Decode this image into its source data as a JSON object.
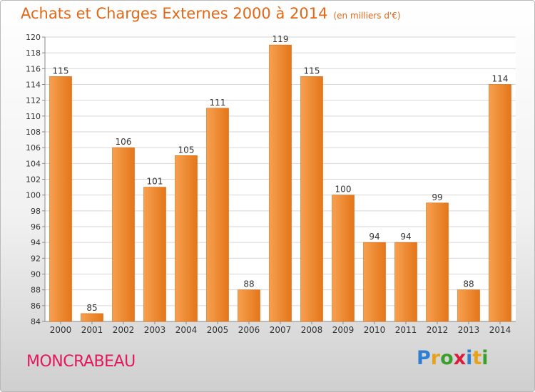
{
  "title": "Achats et Charges Externes 2000 à 2014",
  "unit": "(en milliers d'€)",
  "commune": "MONCRABEAU",
  "logo": {
    "text": "Proxiti",
    "colors": [
      "#2f7fd0",
      "#e8a21a",
      "#3a9f2c",
      "#d81e3c",
      "#2f7fd0",
      "#e8a21a",
      "#3a9f2c"
    ]
  },
  "chart_data": {
    "type": "bar",
    "categories": [
      "2000",
      "2001",
      "2002",
      "2003",
      "2004",
      "2005",
      "2006",
      "2007",
      "2008",
      "2009",
      "2010",
      "2011",
      "2012",
      "2013",
      "2014"
    ],
    "values": [
      115,
      85,
      106,
      101,
      105,
      111,
      88,
      119,
      115,
      100,
      94,
      94,
      99,
      88,
      114
    ],
    "ylim": [
      84,
      120
    ],
    "ytick_step": 2,
    "grid": true,
    "bar_color": "#f08a28",
    "title": "Achats et Charges Externes 2000 à 2014",
    "xlabel": "",
    "ylabel": ""
  }
}
